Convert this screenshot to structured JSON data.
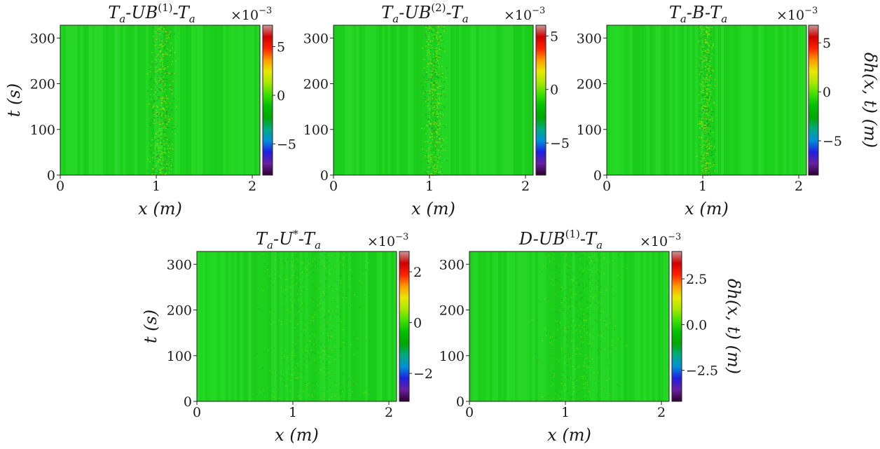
{
  "figure": {
    "colormap": [
      "#2a002e",
      "#6a1fa0",
      "#1f1fe0",
      "#0090d8",
      "#00aa80",
      "#00a800",
      "#00c000",
      "#3ee000",
      "#a8e800",
      "#e8e800",
      "#ff9900",
      "#ff2000",
      "#d00000",
      "#c89898"
    ],
    "field_color": "#1ed61e"
  },
  "chart_data": [
    {
      "type": "heatmap",
      "title_main": "T",
      "title_sub1": "a",
      "title_mid": "-UB",
      "title_sup": "(1)",
      "title_end": "-T",
      "title_sub2": "a",
      "multiplier": "×10",
      "multiplier_exp": "−3",
      "xlabel": "x",
      "xlabel_unit": "(m)",
      "ylabel": "t",
      "ylabel_unit": "(s)",
      "xlim": [
        0,
        2.08
      ],
      "ylim": [
        0,
        328
      ],
      "xticks": [
        0,
        1,
        2
      ],
      "xtick_labels": [
        "0",
        "1",
        "2"
      ],
      "yticks": [
        0,
        100,
        200,
        300
      ],
      "ytick_labels": [
        "0",
        "100",
        "200",
        "300"
      ],
      "colorbar_range": [
        -8.2,
        7.2
      ],
      "colorbar_ticks": [
        -5,
        0,
        5
      ],
      "colorbar_tick_labels": [
        "−5",
        "0",
        "5"
      ],
      "colorbar_label": "",
      "noise_band": [
        0.92,
        1.18
      ]
    },
    {
      "type": "heatmap",
      "title_main": "T",
      "title_sub1": "a",
      "title_mid": "-UB",
      "title_sup": "(2)",
      "title_end": "-T",
      "title_sub2": "a",
      "multiplier": "×10",
      "multiplier_exp": "−3",
      "xlabel": "x",
      "xlabel_unit": "(m)",
      "ylabel": "",
      "ylabel_unit": "",
      "xlim": [
        0,
        2.08
      ],
      "ylim": [
        0,
        328
      ],
      "xticks": [
        0,
        1,
        2
      ],
      "xtick_labels": [
        "0",
        "1",
        "2"
      ],
      "yticks": [
        0,
        100,
        200,
        300
      ],
      "ytick_labels": [
        "0",
        "100",
        "200",
        "300"
      ],
      "colorbar_range": [
        -8.0,
        6.0
      ],
      "colorbar_ticks": [
        -5,
        0,
        5
      ],
      "colorbar_tick_labels": [
        "−5",
        "0",
        "5"
      ],
      "colorbar_label": "",
      "noise_band": [
        0.92,
        1.16
      ]
    },
    {
      "type": "heatmap",
      "title_main": "T",
      "title_sub1": "a",
      "title_mid": "-B-T",
      "title_sup": "",
      "title_end": "",
      "title_sub2": "a",
      "multiplier": "×10",
      "multiplier_exp": "−3",
      "xlabel": "x",
      "xlabel_unit": "(m)",
      "ylabel": "",
      "ylabel_unit": "",
      "xlim": [
        0,
        2.08
      ],
      "ylim": [
        0,
        328
      ],
      "xticks": [
        0,
        1,
        2
      ],
      "xtick_labels": [
        "0",
        "1",
        "2"
      ],
      "yticks": [
        0,
        100,
        200,
        300
      ],
      "ytick_labels": [
        "0",
        "100",
        "200",
        "300"
      ],
      "colorbar_range": [
        -8.5,
        6.8
      ],
      "colorbar_ticks": [
        -5,
        0,
        5
      ],
      "colorbar_tick_labels": [
        "−5",
        "0",
        "5"
      ],
      "colorbar_label": "δh(x, t) (m)",
      "noise_band": [
        0.94,
        1.12
      ]
    },
    {
      "type": "heatmap",
      "title_main": "T",
      "title_sub1": "a",
      "title_mid": "-U",
      "title_sup": "*",
      "title_end": "-T",
      "title_sub2": "a",
      "multiplier": "×10",
      "multiplier_exp": "−3",
      "xlabel": "x",
      "xlabel_unit": "(m)",
      "ylabel": "t",
      "ylabel_unit": "(s)",
      "xlim": [
        0,
        2.08
      ],
      "ylim": [
        0,
        328
      ],
      "xticks": [
        0,
        1,
        2
      ],
      "xtick_labels": [
        "0",
        "1",
        "2"
      ],
      "yticks": [
        0,
        100,
        200,
        300
      ],
      "ytick_labels": [
        "0",
        "100",
        "200",
        "300"
      ],
      "colorbar_range": [
        -3.1,
        2.8
      ],
      "colorbar_ticks": [
        -2,
        0,
        2
      ],
      "colorbar_tick_labels": [
        "−2",
        "0",
        "2"
      ],
      "colorbar_label": "",
      "noise_band": [
        0.6,
        1.8
      ]
    },
    {
      "type": "heatmap",
      "title_main": "D",
      "title_sub1": "",
      "title_mid": "-UB",
      "title_sup": "(1)",
      "title_end": "-T",
      "title_sub2": "a",
      "multiplier": "×10",
      "multiplier_exp": "−3",
      "xlabel": "x",
      "xlabel_unit": "(m)",
      "ylabel": "",
      "ylabel_unit": "",
      "xlim": [
        0,
        2.08
      ],
      "ylim": [
        0,
        328
      ],
      "xticks": [
        0,
        1,
        2
      ],
      "xtick_labels": [
        "0",
        "1",
        "2"
      ],
      "yticks": [
        0,
        100,
        200,
        300
      ],
      "ytick_labels": [
        "0",
        "100",
        "200",
        "300"
      ],
      "colorbar_range": [
        -4.2,
        4.0
      ],
      "colorbar_ticks": [
        -2.5,
        0.0,
        2.5
      ],
      "colorbar_tick_labels": [
        "−2.5",
        "0.0",
        "2.5"
      ],
      "colorbar_label": "δh(x, t) (m)",
      "noise_band": [
        0.7,
        1.6
      ]
    }
  ]
}
